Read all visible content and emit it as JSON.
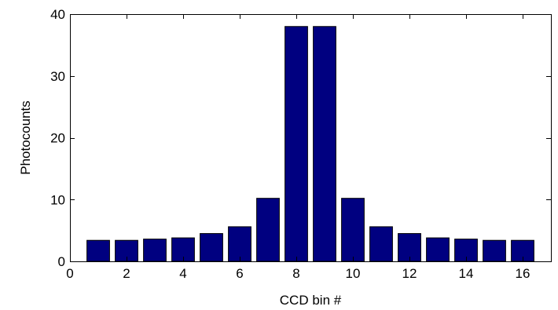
{
  "chart_data": {
    "type": "bar",
    "x": [
      1,
      2,
      3,
      4,
      5,
      6,
      7,
      8,
      9,
      10,
      11,
      12,
      13,
      14,
      15,
      16
    ],
    "values": [
      3.4,
      3.4,
      3.6,
      3.8,
      4.5,
      5.6,
      10.2,
      38.0,
      38.0,
      10.2,
      5.6,
      4.5,
      3.8,
      3.6,
      3.4,
      3.4
    ],
    "title": "",
    "xlabel": "CCD bin #",
    "ylabel": "Photocounts",
    "xlim": [
      0,
      17
    ],
    "ylim": [
      0,
      40
    ],
    "xticks": [
      0,
      2,
      4,
      6,
      8,
      10,
      12,
      14,
      16
    ],
    "yticks": [
      0,
      10,
      20,
      30,
      40
    ],
    "grid": false,
    "bar_color": "#000080",
    "bar_edge_color": "#000000"
  }
}
